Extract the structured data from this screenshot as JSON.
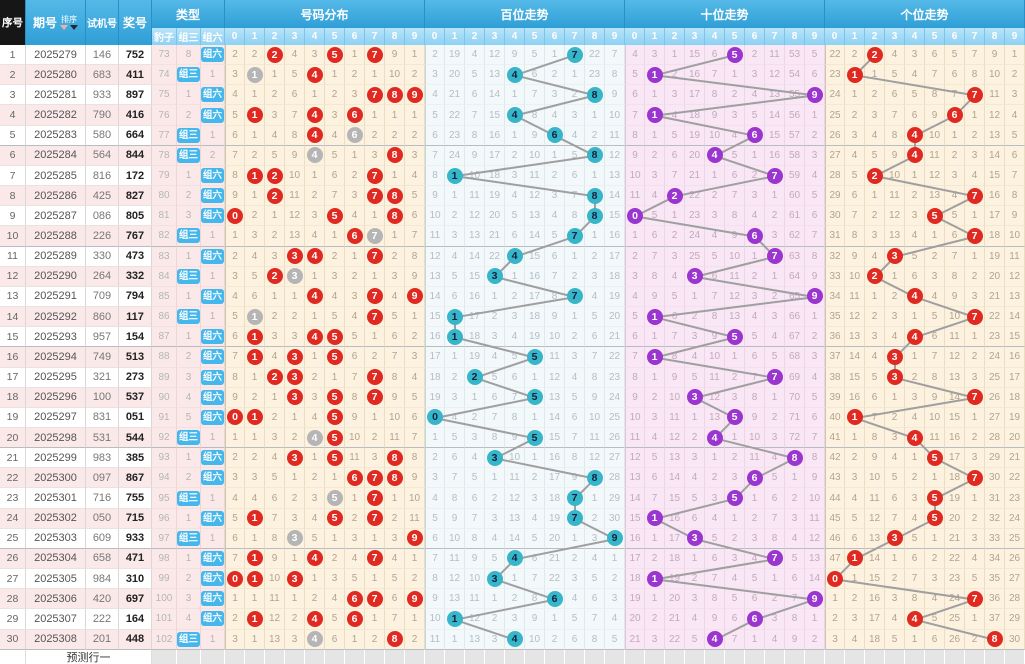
{
  "header": {
    "seq": "序号",
    "period": "期号",
    "sort": "排序",
    "test": "试机号",
    "prize": "奖号",
    "type": "类型",
    "type_subs": [
      "豹子",
      "组三",
      "组六"
    ],
    "sections": [
      "号码分布",
      "百位走势",
      "十位走势",
      "个位走势"
    ],
    "digits": [
      "0",
      "1",
      "2",
      "3",
      "4",
      "5",
      "6",
      "7",
      "8",
      "9"
    ]
  },
  "footer": {
    "label": "预测行一"
  },
  "type_state": {
    "baozi_row1": 73,
    "zu3_row1_miss": 8
  },
  "initials": {
    "dist": [
      2,
      2,
      0,
      4,
      3,
      0,
      1,
      0,
      9,
      1
    ],
    "hundreds": [
      2,
      19,
      4,
      12,
      9,
      5,
      1,
      0,
      22,
      7
    ],
    "tens": [
      4,
      3,
      1,
      15,
      6,
      0,
      2,
      11,
      53,
      5
    ],
    "units": [
      22,
      2,
      0,
      4,
      3,
      6,
      5,
      7,
      9,
      1
    ]
  },
  "rows": [
    {
      "seq": 1,
      "period": "2025279",
      "test": "146",
      "prize": "752",
      "type": "组六"
    },
    {
      "seq": 2,
      "period": "2025280",
      "test": "683",
      "prize": "411",
      "type": "组三"
    },
    {
      "seq": 3,
      "period": "2025281",
      "test": "933",
      "prize": "897",
      "type": "组六"
    },
    {
      "seq": 4,
      "period": "2025282",
      "test": "790",
      "prize": "416",
      "type": "组六"
    },
    {
      "seq": 5,
      "period": "2025283",
      "test": "580",
      "prize": "664",
      "type": "组三"
    },
    {
      "seq": 6,
      "period": "2025284",
      "test": "564",
      "prize": "844",
      "type": "组三"
    },
    {
      "seq": 7,
      "period": "2025285",
      "test": "816",
      "prize": "172",
      "type": "组六"
    },
    {
      "seq": 8,
      "period": "2025286",
      "test": "425",
      "prize": "827",
      "type": "组六"
    },
    {
      "seq": 9,
      "period": "2025287",
      "test": "086",
      "prize": "805",
      "type": "组六"
    },
    {
      "seq": 10,
      "period": "2025288",
      "test": "226",
      "prize": "767",
      "type": "组三"
    },
    {
      "seq": 11,
      "period": "2025289",
      "test": "330",
      "prize": "473",
      "type": "组六"
    },
    {
      "seq": 12,
      "period": "2025290",
      "test": "264",
      "prize": "332",
      "type": "组三"
    },
    {
      "seq": 13,
      "period": "2025291",
      "test": "709",
      "prize": "794",
      "type": "组六"
    },
    {
      "seq": 14,
      "period": "2025292",
      "test": "860",
      "prize": "117",
      "type": "组三"
    },
    {
      "seq": 15,
      "period": "2025293",
      "test": "957",
      "prize": "154",
      "type": "组六"
    },
    {
      "seq": 16,
      "period": "2025294",
      "test": "749",
      "prize": "513",
      "type": "组六"
    },
    {
      "seq": 17,
      "period": "2025295",
      "test": "321",
      "prize": "273",
      "type": "组六"
    },
    {
      "seq": 18,
      "period": "2025296",
      "test": "100",
      "prize": "537",
      "type": "组六"
    },
    {
      "seq": 19,
      "period": "2025297",
      "test": "831",
      "prize": "051",
      "type": "组六"
    },
    {
      "seq": 20,
      "period": "2025298",
      "test": "531",
      "prize": "544",
      "type": "组三"
    },
    {
      "seq": 21,
      "period": "2025299",
      "test": "983",
      "prize": "385",
      "type": "组六"
    },
    {
      "seq": 22,
      "period": "2025300",
      "test": "097",
      "prize": "867",
      "type": "组六"
    },
    {
      "seq": 23,
      "period": "2025301",
      "test": "716",
      "prize": "755",
      "type": "组三"
    },
    {
      "seq": 24,
      "period": "2025302",
      "test": "050",
      "prize": "715",
      "type": "组六"
    },
    {
      "seq": 25,
      "period": "2025303",
      "test": "609",
      "prize": "933",
      "type": "组三"
    },
    {
      "seq": 26,
      "period": "2025304",
      "test": "658",
      "prize": "471",
      "type": "组六"
    },
    {
      "seq": 27,
      "period": "2025305",
      "test": "984",
      "prize": "310",
      "type": "组六"
    },
    {
      "seq": 28,
      "period": "2025306",
      "test": "420",
      "prize": "697",
      "type": "组六"
    },
    {
      "seq": 29,
      "period": "2025307",
      "test": "222",
      "prize": "164",
      "type": "组六"
    },
    {
      "seq": 30,
      "period": "2025308",
      "test": "201",
      "prize": "448",
      "type": "组三"
    }
  ],
  "colors": {
    "header_blue": "#35a3d9",
    "header_blue_light": "#9ed9f5",
    "seq_header_black": "#161616",
    "type_label_blue": "#45b7ec",
    "row_pink": "#fbe9e9",
    "row_white": "#ffffff",
    "dist_units_bg": "#fdf2e0",
    "hundreds_bg": "#f3f8fa",
    "tens_bg": "#f9e7f6",
    "hit_red": "#e02a21",
    "pair_gray": "#b5b5b5",
    "hundreds_teal": "#36b6c8",
    "tens_purple": "#9a35cf",
    "teal_digit_color": "#12203f",
    "trend_line_gray": "#9f9f9f",
    "footer_gray": "#e5e5e5"
  }
}
